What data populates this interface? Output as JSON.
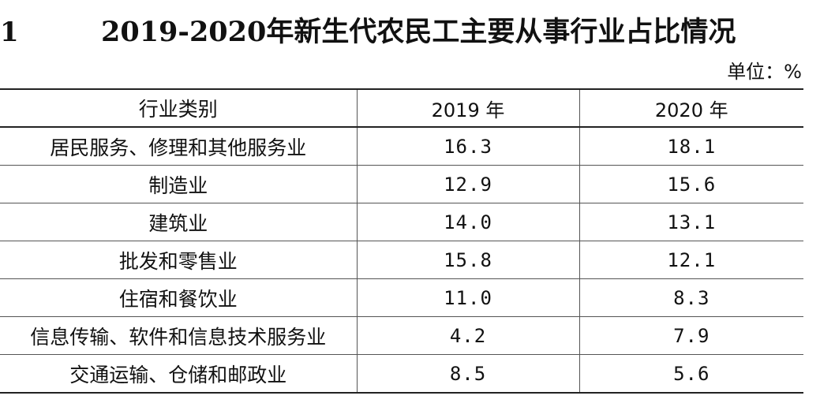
{
  "document": {
    "table_number": "1",
    "title": "2019-2020年新生代农民工主要从事行业占比情况",
    "unit": "单位：%"
  },
  "table": {
    "headers": [
      "行业类别",
      "2019 年",
      "2020 年"
    ],
    "rows": [
      {
        "category": "居民服务、修理和其他服务业",
        "y2019": "16.3",
        "y2020": "18.1"
      },
      {
        "category": "制造业",
        "y2019": "12.9",
        "y2020": "15.6"
      },
      {
        "category": "建筑业",
        "y2019": "14.0",
        "y2020": "13.1"
      },
      {
        "category": "批发和零售业",
        "y2019": "15.8",
        "y2020": "12.1"
      },
      {
        "category": "住宿和餐饮业",
        "y2019": "11.0",
        "y2020": "8.3"
      },
      {
        "category": "信息传输、软件和信息技术服务业",
        "y2019": "4.2",
        "y2020": "7.9"
      },
      {
        "category": "交通运输、仓储和邮政业",
        "y2019": "8.5",
        "y2020": "5.6"
      }
    ]
  }
}
